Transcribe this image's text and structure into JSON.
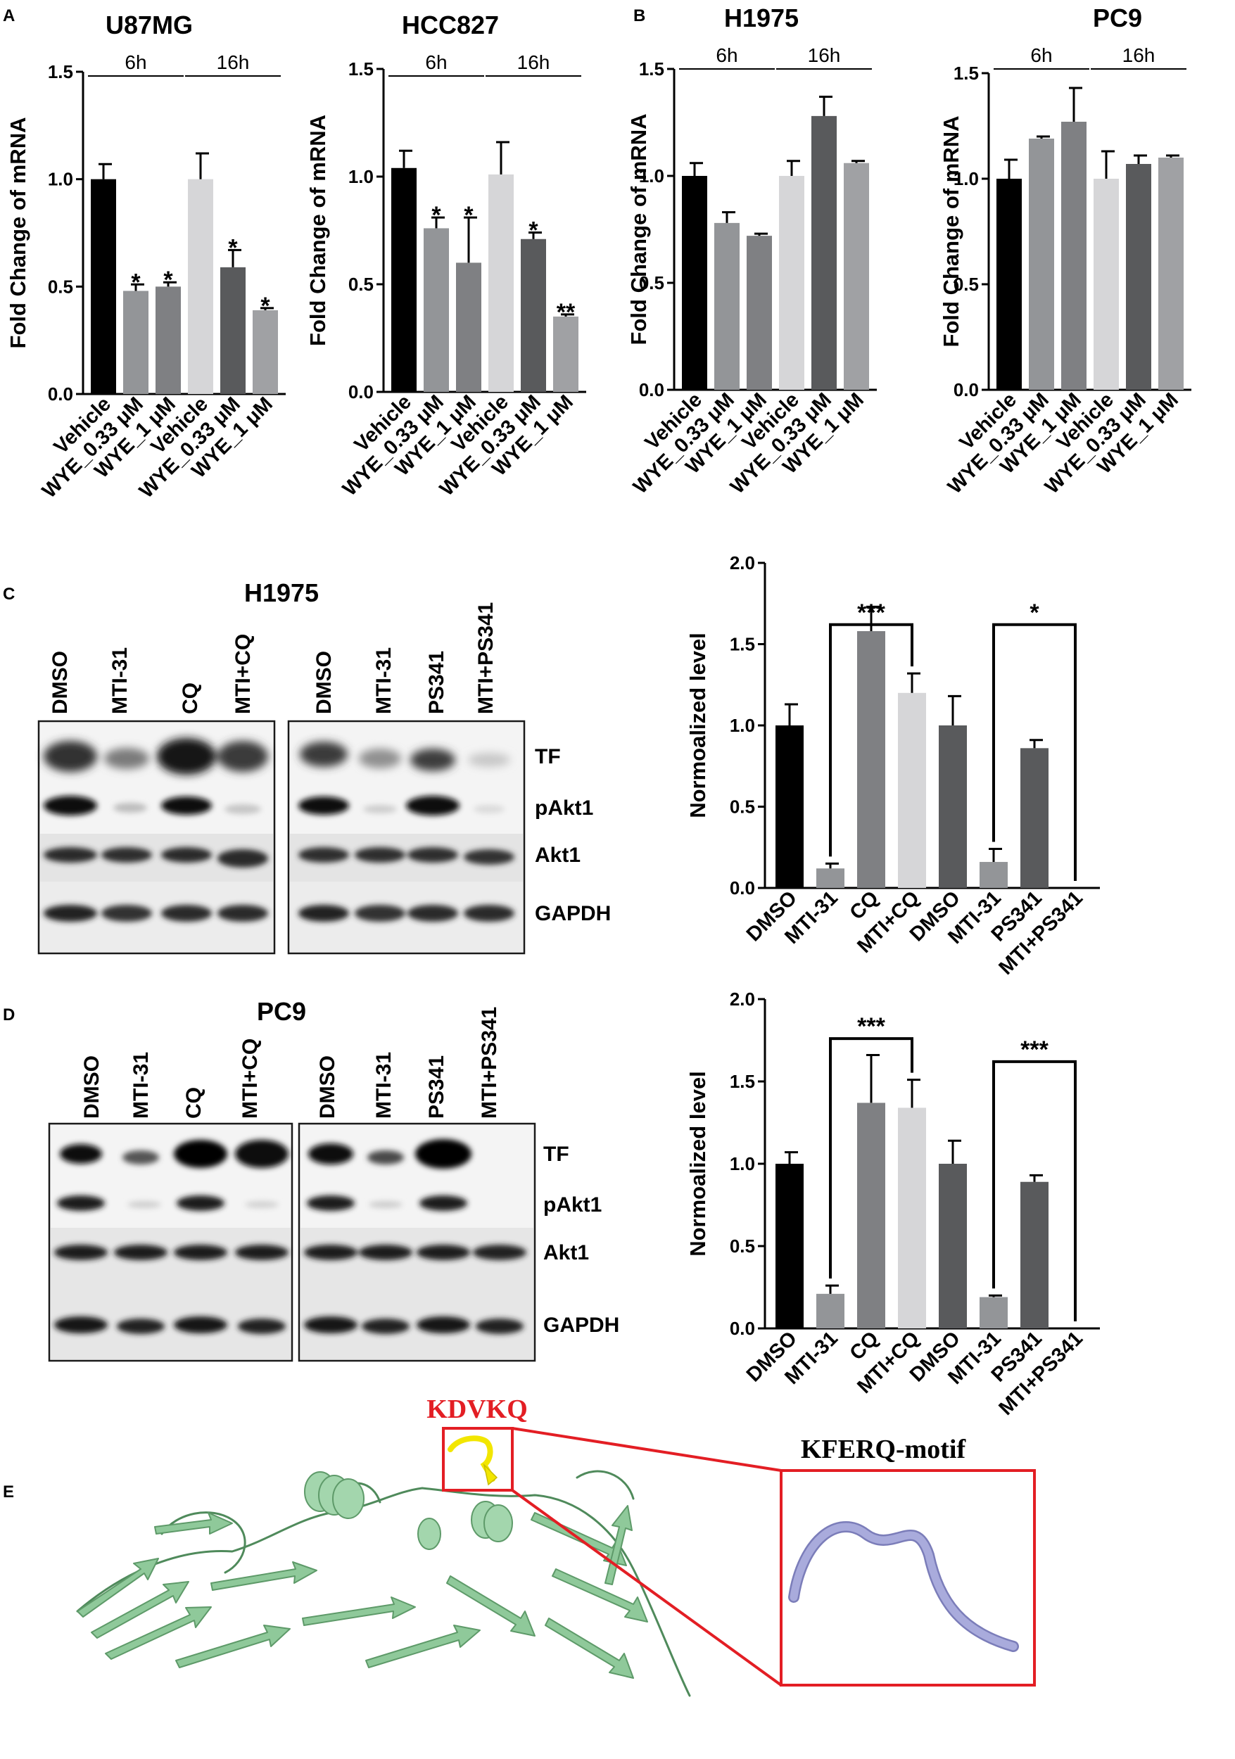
{
  "panel_letters": [
    "A",
    "B",
    "C",
    "D",
    "E"
  ],
  "colors": {
    "black": "#000000",
    "mid_gray": "#939598",
    "gray2": "#7f8083",
    "light_gray": "#d6d6d8",
    "dark_gray": "#595a5c",
    "gray3": "#a0a1a4",
    "protein": "#8fc99a",
    "motif_highlight": "#f2e600",
    "motif_tube": "#a9abdc",
    "red": "#e31e24"
  },
  "western_blots": [
    {
      "title": "H1975",
      "lanes_left": [
        "DMSO",
        "MTI-31",
        "CQ",
        "MTI+CQ"
      ],
      "lanes_right": [
        "DMSO",
        "MTI-31",
        "PS341",
        "MTI+PS341"
      ],
      "rows": [
        "TF",
        "pAkt1",
        "Akt1",
        "GAPDH"
      ]
    },
    {
      "title": "PC9",
      "lanes_left": [
        "DMSO",
        "MTI-31",
        "CQ",
        "MTI+CQ"
      ],
      "lanes_right": [
        "DMSO",
        "MTI-31",
        "PS341",
        "MTI+PS341"
      ],
      "rows": [
        "TF",
        "pAkt1",
        "Akt1",
        "GAPDH"
      ]
    }
  ],
  "structure": {
    "motif_label": "KDVKQ",
    "zoom_label": "KFERQ-motif"
  },
  "chart_data": [
    {
      "type": "bar",
      "title": "U87MG",
      "ylabel": "Fold Change of mRNA",
      "ylim": [
        0,
        1.5
      ],
      "yticks": [
        "0.0",
        "0.5",
        "1.0",
        "1.5"
      ],
      "categories": [
        "Vehicle",
        "WYE_0.33 μM",
        "WYE_1 μM",
        "Vehicle",
        "WYE_0.33 μM",
        "WYE_1 μM"
      ],
      "values": [
        1.0,
        0.48,
        0.5,
        1.0,
        0.59,
        0.39
      ],
      "errors": [
        0.07,
        0.03,
        0.02,
        0.12,
        0.08,
        0.01
      ],
      "significance": [
        "",
        "*",
        "*",
        "",
        "*",
        "*"
      ],
      "groups": [
        {
          "label": "6h",
          "from": 0,
          "to": 2
        },
        {
          "label": "16h",
          "from": 3,
          "to": 5
        }
      ]
    },
    {
      "type": "bar",
      "title": "HCC827",
      "ylabel": "Fold Change of mRNA",
      "ylim": [
        0,
        1.5
      ],
      "yticks": [
        "0.0",
        "0.5",
        "1.0",
        "1.5"
      ],
      "categories": [
        "Vehicle",
        "WYE_0.33 μM",
        "WYE_1 μM",
        "Vehicle",
        "WYE_0.33 μM",
        "WYE_1 μM"
      ],
      "values": [
        1.04,
        0.76,
        0.6,
        1.01,
        0.71,
        0.35
      ],
      "errors": [
        0.08,
        0.05,
        0.21,
        0.15,
        0.03,
        0.01
      ],
      "significance": [
        "",
        "*",
        "*",
        "",
        "*",
        "**"
      ],
      "groups": [
        {
          "label": "6h",
          "from": 0,
          "to": 2
        },
        {
          "label": "16h",
          "from": 3,
          "to": 5
        }
      ]
    },
    {
      "type": "bar",
      "title": "H1975",
      "ylabel": "Fold Change of mRNA",
      "ylim": [
        0,
        1.5
      ],
      "yticks": [
        "0.0",
        "0.5",
        "1.0",
        "1.5"
      ],
      "categories": [
        "Vehicle",
        "WYE_0.33 μM",
        "WYE_1 μM",
        "Vehicle",
        "WYE_0.33 μM",
        "WYE_1 μM"
      ],
      "values": [
        1.0,
        0.78,
        0.72,
        1.0,
        1.28,
        1.06
      ],
      "errors": [
        0.06,
        0.05,
        0.01,
        0.07,
        0.09,
        0.01
      ],
      "significance": [
        "",
        "",
        "",
        "",
        "",
        ""
      ],
      "groups": [
        {
          "label": "6h",
          "from": 0,
          "to": 2
        },
        {
          "label": "16h",
          "from": 3,
          "to": 5
        }
      ]
    },
    {
      "type": "bar",
      "title": "PC9",
      "ylabel": "Fold Change of mRNA",
      "ylim": [
        0,
        1.5
      ],
      "yticks": [
        "0.0",
        "0.5",
        "1.0",
        "1.5"
      ],
      "categories": [
        "Vehicle",
        "WYE_0.33 μM",
        "WYE_1 μM",
        "Vehicle",
        "WYE_0.33 μM",
        "WYE_1 μM"
      ],
      "values": [
        1.0,
        1.19,
        1.27,
        1.0,
        1.07,
        1.1
      ],
      "errors": [
        0.09,
        0.01,
        0.16,
        0.13,
        0.04,
        0.01
      ],
      "significance": [
        "",
        "",
        "",
        "",
        "",
        ""
      ],
      "groups": [
        {
          "label": "6h",
          "from": 0,
          "to": 2
        },
        {
          "label": "16h",
          "from": 3,
          "to": 5
        }
      ]
    },
    {
      "type": "bar",
      "title": "",
      "ylabel": "Normoalized level",
      "ylim": [
        0,
        2.0
      ],
      "yticks": [
        "0.0",
        "0.5",
        "1.0",
        "1.5",
        "2.0"
      ],
      "categories": [
        "DMSO",
        "MTI-31",
        "CQ",
        "MTI+CQ",
        "DMSO",
        "MTI-31",
        "PS341",
        "MTI+PS341"
      ],
      "values": [
        1.0,
        0.12,
        1.58,
        1.2,
        1.0,
        0.16,
        0.86,
        0.0
      ],
      "errors": [
        0.13,
        0.03,
        0.15,
        0.12,
        0.18,
        0.08,
        0.05,
        0.0
      ],
      "brackets": [
        {
          "from": 1,
          "to": 3,
          "label": "***"
        },
        {
          "from": 5,
          "to": 7,
          "label": "*"
        }
      ]
    },
    {
      "type": "bar",
      "title": "",
      "ylabel": "Normoalized level",
      "ylim": [
        0,
        2.0
      ],
      "yticks": [
        "0.0",
        "0.5",
        "1.0",
        "1.5",
        "2.0"
      ],
      "categories": [
        "DMSO",
        "MTI-31",
        "CQ",
        "MTI+CQ",
        "DMSO",
        "MTI-31",
        "PS341",
        "MTI+PS341"
      ],
      "values": [
        1.0,
        0.21,
        1.37,
        1.34,
        1.0,
        0.19,
        0.89,
        0.0
      ],
      "errors": [
        0.07,
        0.05,
        0.29,
        0.17,
        0.14,
        0.01,
        0.04,
        0.0
      ],
      "brackets": [
        {
          "from": 1,
          "to": 3,
          "label": "***"
        },
        {
          "from": 5,
          "to": 7,
          "label": "***"
        }
      ]
    }
  ]
}
